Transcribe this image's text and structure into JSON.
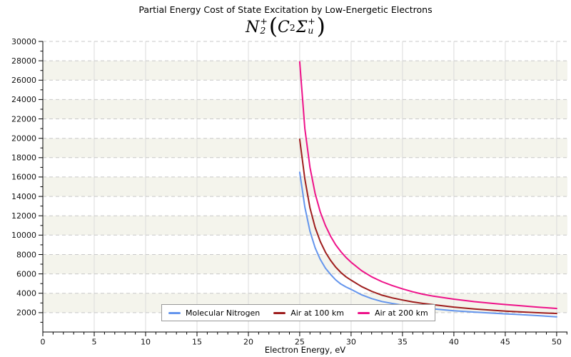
{
  "title": "Partial Energy Cost of State Excitation by Low-Energetic Electrons",
  "formula": {
    "base1": "N",
    "base1_sup": "+",
    "base1_sub": "2",
    "paren_open": "(",
    "base2": "C",
    "base2_sup": "2",
    "base3": "Σ",
    "base3_sup": "+",
    "base3_sub": "u",
    "paren_close": ")"
  },
  "chart_data": {
    "type": "line",
    "title": "Partial Energy Cost of State Excitation by Low-Energetic Electrons",
    "subtitle_formula": "N2+ (C2 Sigma_u+)",
    "xlabel": "Electron Energy, eV",
    "ylabel": "",
    "xlim": [
      0,
      51.05
    ],
    "ylim": [
      0,
      30000
    ],
    "x_major_ticks": [
      0,
      5,
      10,
      15,
      20,
      25,
      30,
      35,
      40,
      45,
      50
    ],
    "x_minor_step": 1,
    "y_major_ticks": [
      2000,
      4000,
      6000,
      8000,
      10000,
      12000,
      14000,
      16000,
      18000,
      20000,
      22000,
      24000,
      26000,
      28000,
      30000
    ],
    "y_minor_step": 1000,
    "grid": {
      "horizontal_style": "dashed",
      "vertical_style": "solid",
      "horizontal_color": "#c8c8c8",
      "vertical_color": "#dbdbdb"
    },
    "band_colors": [
      "#ffffff",
      "#f4f4ec"
    ],
    "legend_position": "bottom-center-inside",
    "x": [
      25,
      25.5,
      26,
      26.5,
      27,
      27.5,
      28,
      28.5,
      29,
      29.5,
      30,
      31,
      32,
      33,
      34,
      35,
      36,
      37,
      38,
      40,
      42,
      44,
      45,
      46,
      48,
      50
    ],
    "series": [
      {
        "name": "Molecular Nitrogen",
        "color": "#6495ED",
        "values": [
          16500,
          12900,
          10400,
          8700,
          7500,
          6600,
          5950,
          5380,
          4950,
          4650,
          4400,
          3850,
          3450,
          3150,
          2950,
          2780,
          2620,
          2490,
          2390,
          2200,
          2060,
          1930,
          1870,
          1820,
          1700,
          1560
        ]
      },
      {
        "name": "Air at 100 km",
        "color": "#9E1D1D",
        "values": [
          19900,
          15800,
          12800,
          10800,
          9350,
          8250,
          7400,
          6700,
          6150,
          5700,
          5350,
          4700,
          4200,
          3800,
          3520,
          3300,
          3100,
          2950,
          2820,
          2570,
          2380,
          2230,
          2160,
          2100,
          2000,
          1920
        ]
      },
      {
        "name": "Air at 200 km",
        "color": "#EE1289",
        "values": [
          27900,
          21000,
          17000,
          14300,
          12400,
          11000,
          9900,
          9000,
          8300,
          7700,
          7200,
          6350,
          5700,
          5200,
          4800,
          4450,
          4150,
          3900,
          3700,
          3390,
          3130,
          2930,
          2840,
          2760,
          2580,
          2430
        ]
      }
    ]
  }
}
